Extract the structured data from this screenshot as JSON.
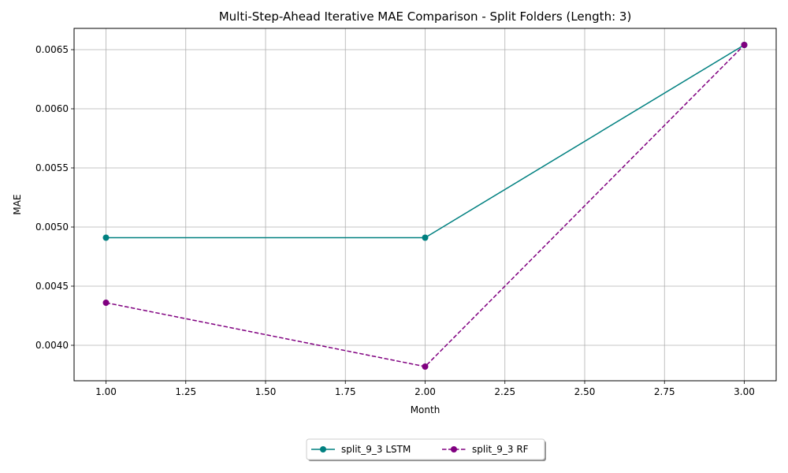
{
  "chart_data": {
    "type": "line",
    "title": "Multi-Step-Ahead Iterative MAE Comparison - Split Folders (Length: 3)",
    "xlabel": "Month",
    "ylabel": "MAE",
    "x": [
      1.0,
      2.0,
      3.0
    ],
    "xlim": [
      0.9,
      3.1
    ],
    "ylim": [
      0.0037,
      0.00668
    ],
    "xticks": [
      1.0,
      1.25,
      1.5,
      1.75,
      2.0,
      2.25,
      2.5,
      2.75,
      3.0
    ],
    "xtick_labels": [
      "1.00",
      "1.25",
      "1.50",
      "1.75",
      "2.00",
      "2.25",
      "2.50",
      "2.75",
      "3.00"
    ],
    "yticks": [
      0.004,
      0.0045,
      0.005,
      0.0055,
      0.006,
      0.0065
    ],
    "ytick_labels": [
      "0.0040",
      "0.0045",
      "0.0050",
      "0.0055",
      "0.0060",
      "0.0065"
    ],
    "grid": true,
    "legend_position": "bottom-center",
    "series": [
      {
        "name": "split_9_3 LSTM",
        "values": [
          0.00491,
          0.00491,
          0.00654
        ],
        "color": "#008080",
        "line_style": "solid",
        "marker": "circle"
      },
      {
        "name": "split_9_3 RF",
        "values": [
          0.00436,
          0.00382,
          0.00654
        ],
        "color": "#800080",
        "line_style": "dashed",
        "marker": "circle"
      }
    ]
  }
}
